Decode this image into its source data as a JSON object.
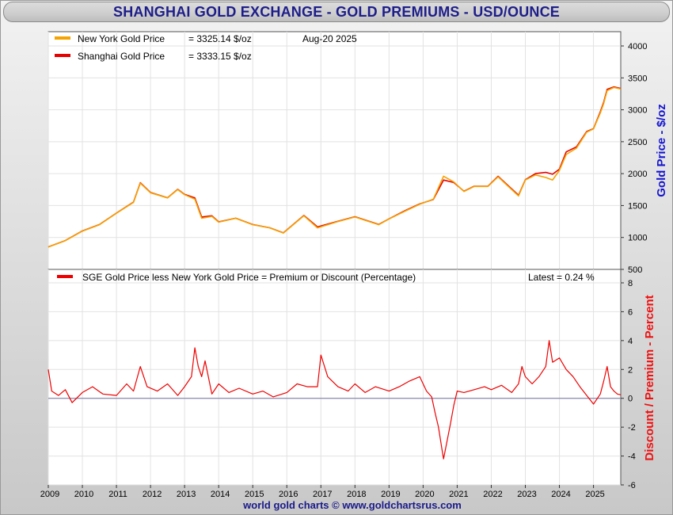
{
  "title": "SHANGHAI GOLD EXCHANGE - GOLD PREMIUMS - USD/OUNCE",
  "footer": "world gold charts © www.goldchartsrus.com",
  "colors": {
    "new_york": "#f5a300",
    "shanghai": "#e60000",
    "premium": "#ee0000",
    "axis_title_top": "#1515d0",
    "axis_title_bottom": "#ee1111",
    "title": "#1d1d8a"
  },
  "chart_data": [
    {
      "type": "line",
      "legend_placement": "top-left",
      "grid": true,
      "ylabel": "Gold Price - $/oz",
      "ylim": [
        500,
        4000
      ],
      "yticks": [
        "500",
        "1000",
        "1500",
        "2000",
        "2500",
        "3000",
        "3500",
        "4000"
      ],
      "xlim": [
        2009.0,
        2025.8
      ],
      "xticks": [
        "2009",
        "2010",
        "2011",
        "2012",
        "2013",
        "2014",
        "2015",
        "2016",
        "2017",
        "2018",
        "2019",
        "2020",
        "2021",
        "2022",
        "2023",
        "2024",
        "2025"
      ],
      "legend": {
        "series1_label": "New York Gold Price",
        "series1_value": "= 3325.14 $/oz",
        "series2_label": "Shanghai Gold Price",
        "series2_value": "= 3333.15 $/oz",
        "date": "Aug-20  2025"
      },
      "series": [
        {
          "name": "New York Gold Price",
          "x": [
            2009.0,
            2009.5,
            2010.0,
            2010.5,
            2011.0,
            2011.5,
            2011.7,
            2012.0,
            2012.5,
            2012.8,
            2013.0,
            2013.3,
            2013.5,
            2013.8,
            2014.0,
            2014.5,
            2015.0,
            2015.5,
            2015.9,
            2016.5,
            2016.9,
            2017.5,
            2018.0,
            2018.7,
            2019.0,
            2019.5,
            2019.9,
            2020.3,
            2020.6,
            2020.9,
            2021.2,
            2021.5,
            2021.9,
            2022.2,
            2022.5,
            2022.8,
            2023.0,
            2023.3,
            2023.6,
            2023.8,
            2024.0,
            2024.2,
            2024.5,
            2024.8,
            2025.0,
            2025.2,
            2025.3,
            2025.4,
            2025.6,
            2025.8
          ],
          "y": [
            850,
            950,
            1100,
            1200,
            1380,
            1550,
            1850,
            1700,
            1620,
            1750,
            1670,
            1600,
            1300,
            1330,
            1240,
            1300,
            1200,
            1150,
            1070,
            1340,
            1150,
            1250,
            1320,
            1200,
            1290,
            1420,
            1520,
            1600,
            1960,
            1870,
            1720,
            1800,
            1800,
            1950,
            1800,
            1650,
            1900,
            1980,
            1940,
            1900,
            2050,
            2300,
            2400,
            2650,
            2700,
            2950,
            3100,
            3300,
            3350,
            3325
          ]
        },
        {
          "name": "Shanghai Gold Price",
          "x": [
            2009.0,
            2009.5,
            2010.0,
            2010.5,
            2011.0,
            2011.5,
            2011.7,
            2012.0,
            2012.5,
            2012.8,
            2013.0,
            2013.3,
            2013.5,
            2013.8,
            2014.0,
            2014.5,
            2015.0,
            2015.5,
            2015.9,
            2016.5,
            2016.9,
            2017.5,
            2018.0,
            2018.7,
            2019.0,
            2019.5,
            2019.9,
            2020.3,
            2020.6,
            2020.9,
            2021.2,
            2021.5,
            2021.9,
            2022.2,
            2022.5,
            2022.8,
            2023.0,
            2023.3,
            2023.6,
            2023.8,
            2024.0,
            2024.2,
            2024.5,
            2024.8,
            2025.0,
            2025.2,
            2025.3,
            2025.4,
            2025.6,
            2025.8
          ],
          "y": [
            852,
            952,
            1102,
            1203,
            1383,
            1555,
            1858,
            1705,
            1622,
            1755,
            1675,
            1620,
            1320,
            1340,
            1245,
            1302,
            1202,
            1152,
            1072,
            1345,
            1165,
            1253,
            1325,
            1205,
            1292,
            1428,
            1525,
            1595,
            1900,
            1860,
            1725,
            1803,
            1802,
            1958,
            1810,
            1662,
            1905,
            2000,
            2020,
            1990,
            2070,
            2340,
            2420,
            2660,
            2705,
            2970,
            3120,
            3320,
            3360,
            3333
          ]
        }
      ]
    },
    {
      "type": "line",
      "legend_placement": "top-left",
      "grid": true,
      "ylabel": "Discount / Premium - Percent",
      "ylim": [
        -6,
        8
      ],
      "yticks": [
        "-6",
        "-4",
        "-2",
        "0",
        "2",
        "4",
        "6",
        "8"
      ],
      "xlim": [
        2009.0,
        2025.8
      ],
      "xticks": [
        "2009",
        "2010",
        "2011",
        "2012",
        "2013",
        "2014",
        "2015",
        "2016",
        "2017",
        "2018",
        "2019",
        "2020",
        "2021",
        "2022",
        "2023",
        "2024",
        "2025"
      ],
      "legend": {
        "series_label": "SGE Gold Price less New York Gold Price = Premium or Discount (Percentage)",
        "latest": "Latest = 0.24 %"
      },
      "series": [
        {
          "name": "SGE Gold Price less New York Gold Price = Premium or Discount (Percentage)",
          "x": [
            2009.0,
            2009.1,
            2009.3,
            2009.5,
            2009.7,
            2010.0,
            2010.3,
            2010.6,
            2011.0,
            2011.3,
            2011.5,
            2011.7,
            2011.9,
            2012.2,
            2012.5,
            2012.8,
            2013.0,
            2013.2,
            2013.3,
            2013.4,
            2013.5,
            2013.6,
            2013.8,
            2014.0,
            2014.3,
            2014.6,
            2015.0,
            2015.3,
            2015.6,
            2016.0,
            2016.3,
            2016.6,
            2016.9,
            2017.0,
            2017.2,
            2017.5,
            2017.8,
            2018.0,
            2018.3,
            2018.6,
            2019.0,
            2019.3,
            2019.6,
            2019.9,
            2020.1,
            2020.25,
            2020.35,
            2020.45,
            2020.55,
            2020.6,
            2020.7,
            2020.8,
            2020.9,
            2021.0,
            2021.2,
            2021.5,
            2021.8,
            2022.0,
            2022.3,
            2022.6,
            2022.8,
            2022.9,
            2023.0,
            2023.2,
            2023.4,
            2023.6,
            2023.7,
            2023.8,
            2024.0,
            2024.2,
            2024.4,
            2024.6,
            2024.8,
            2025.0,
            2025.2,
            2025.3,
            2025.4,
            2025.5,
            2025.6,
            2025.7,
            2025.8
          ],
          "y": [
            2.0,
            0.5,
            0.2,
            0.6,
            -0.3,
            0.4,
            0.8,
            0.3,
            0.2,
            1.0,
            0.5,
            2.2,
            0.8,
            0.5,
            1.0,
            0.2,
            0.8,
            1.5,
            3.5,
            2.2,
            1.5,
            2.6,
            0.3,
            1.0,
            0.4,
            0.7,
            0.3,
            0.5,
            0.1,
            0.4,
            1.0,
            0.8,
            0.8,
            3.0,
            1.5,
            0.8,
            0.5,
            1.0,
            0.4,
            0.8,
            0.5,
            0.8,
            1.2,
            1.5,
            0.5,
            0.1,
            -1.0,
            -2.0,
            -3.5,
            -4.2,
            -3.0,
            -1.8,
            -0.5,
            0.5,
            0.4,
            0.6,
            0.8,
            0.6,
            0.9,
            0.4,
            1.0,
            2.2,
            1.5,
            1.0,
            1.5,
            2.2,
            4.0,
            2.5,
            2.8,
            2.0,
            1.5,
            0.8,
            0.2,
            -0.4,
            0.3,
            1.2,
            2.2,
            0.8,
            0.5,
            0.3,
            0.24
          ]
        }
      ]
    }
  ]
}
